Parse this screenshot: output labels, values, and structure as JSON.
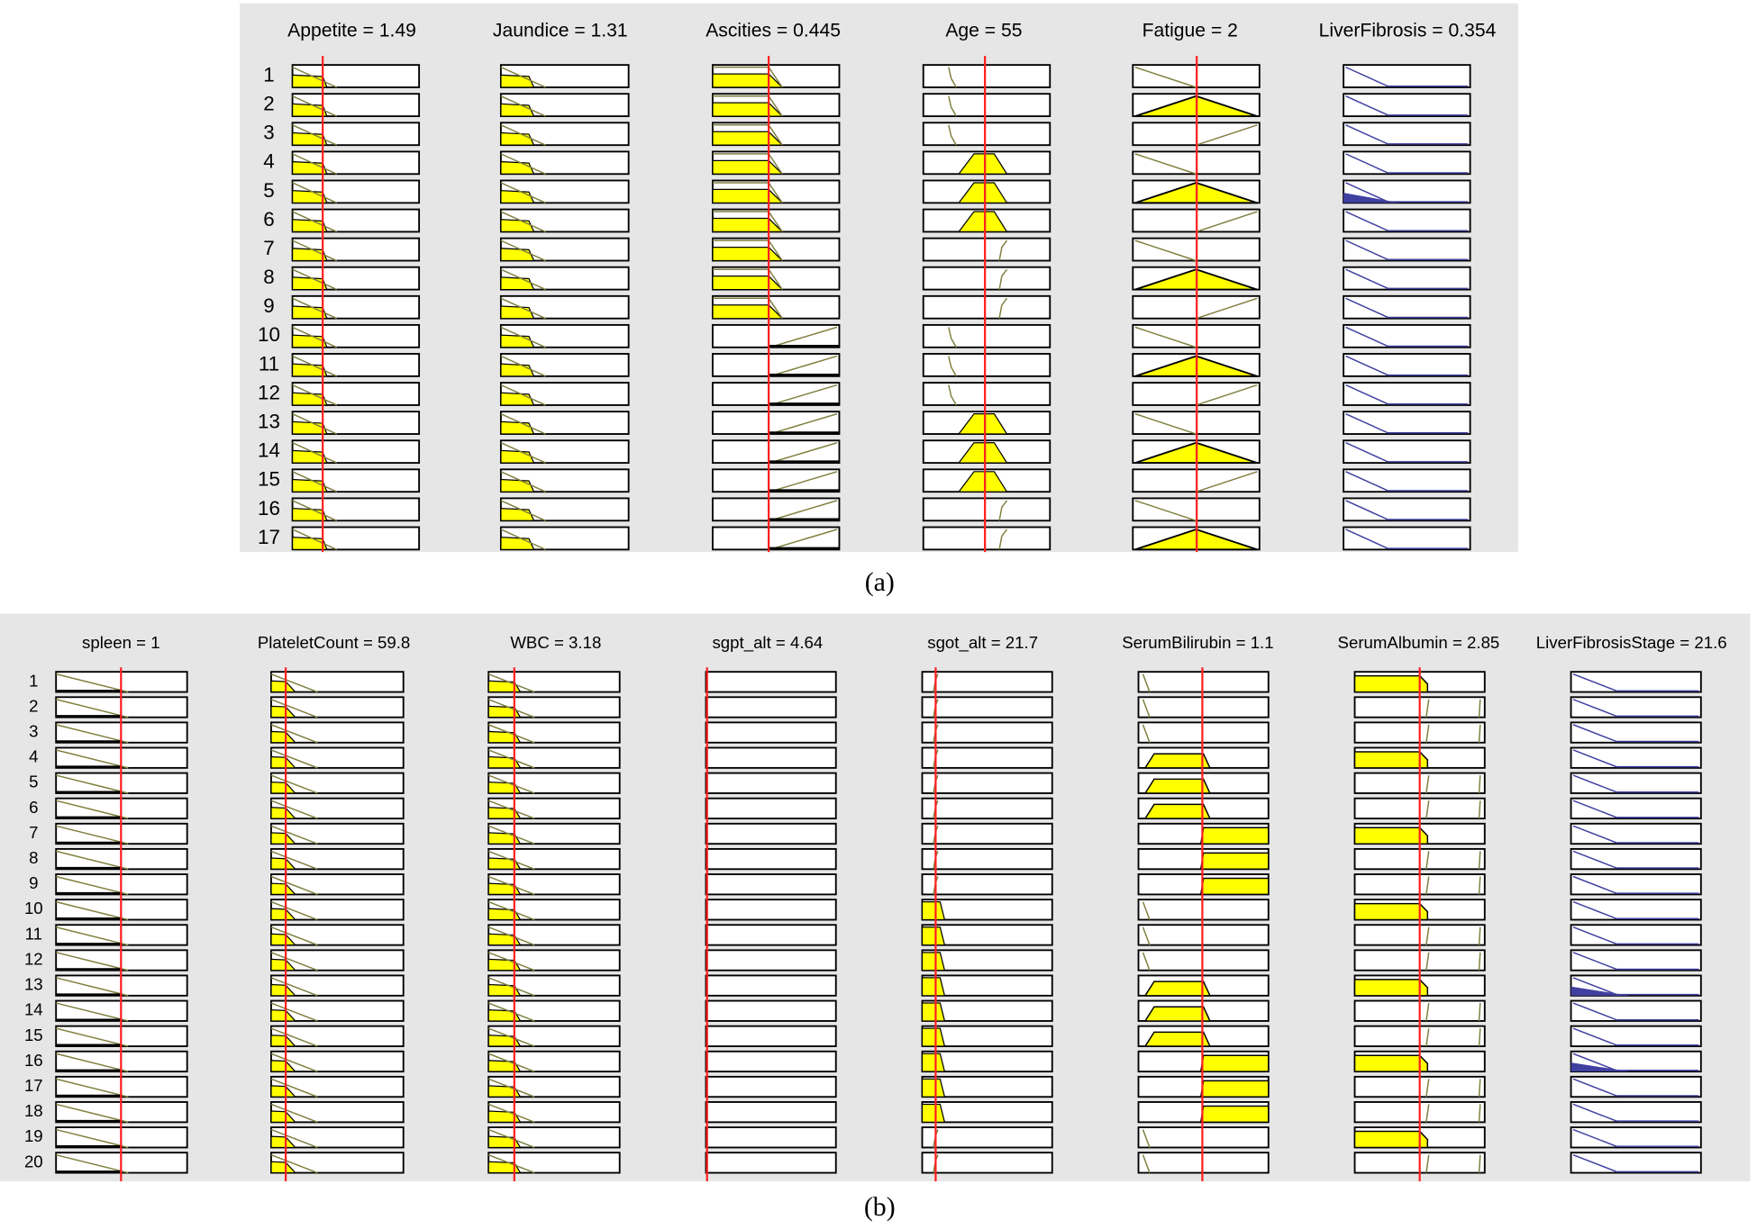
{
  "panel_a": {
    "titles": [
      "Appetite = 1.49",
      "Jaundice = 1.31",
      "Ascities = 0.445",
      "Age = 55",
      "Fatigue = 2",
      "LiverFibrosis = 0.354"
    ],
    "rows": [
      1,
      2,
      3,
      4,
      5,
      6,
      7,
      8,
      9,
      10,
      11,
      12,
      13,
      14,
      15,
      16,
      17
    ],
    "caption": "(a)"
  },
  "panel_b": {
    "titles": [
      "spleen = 1",
      "PlateletCount = 59.8",
      "WBC = 3.18",
      "sgpt_alt = 4.64",
      "sgot_alt = 21.7",
      "SerumBilirubin = 1.1",
      "SerumAlbumin = 2.85",
      "LiverFibrosisStage = 21.6"
    ],
    "rows": [
      1,
      2,
      3,
      4,
      5,
      6,
      7,
      8,
      9,
      10,
      11,
      12,
      13,
      14,
      15,
      16,
      17,
      18,
      19,
      20
    ],
    "caption": "(b)"
  }
}
